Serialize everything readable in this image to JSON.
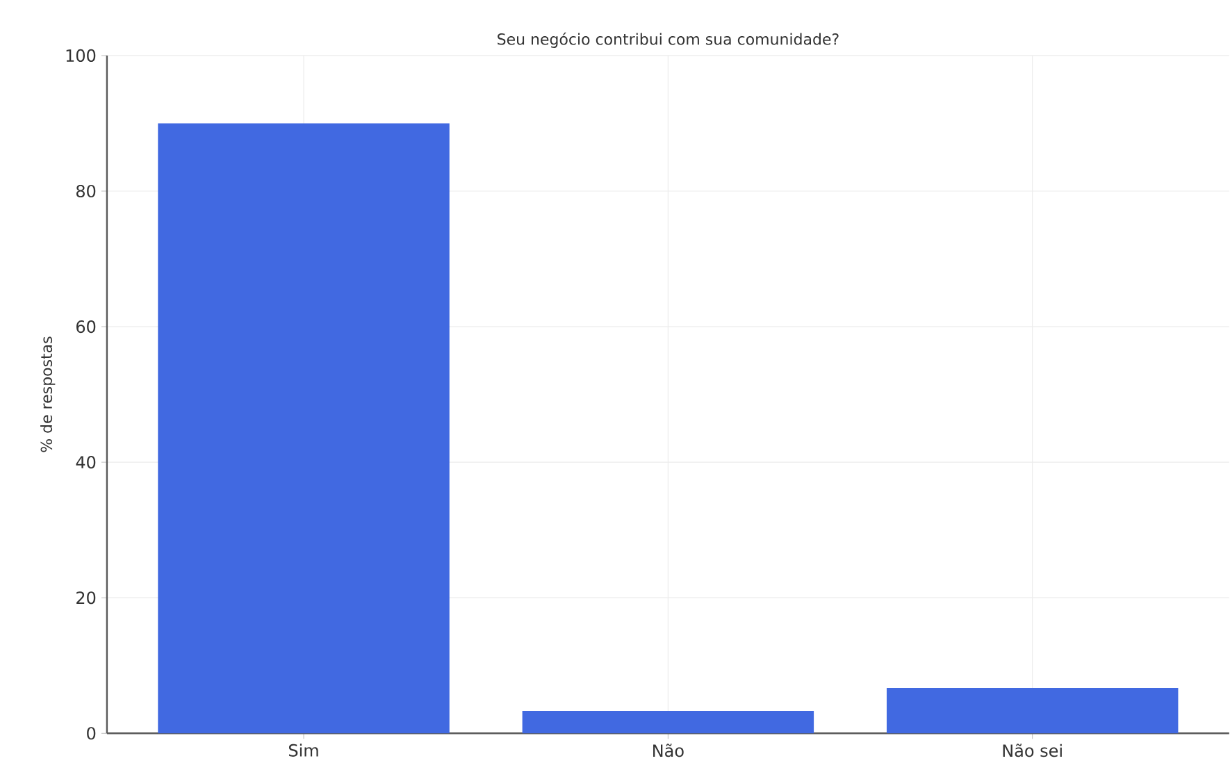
{
  "chart_data": {
    "type": "bar",
    "title": "Seu negócio contribui com sua comunidade?",
    "ylabel": "% de respostas",
    "categories": [
      "Sim",
      "Não",
      "Não sei"
    ],
    "values": [
      90,
      3.3,
      6.7
    ],
    "color": "#4169e1",
    "ylim": [
      0,
      100
    ],
    "yticks": [
      0,
      20,
      40,
      60,
      80,
      100
    ],
    "grid": true
  }
}
